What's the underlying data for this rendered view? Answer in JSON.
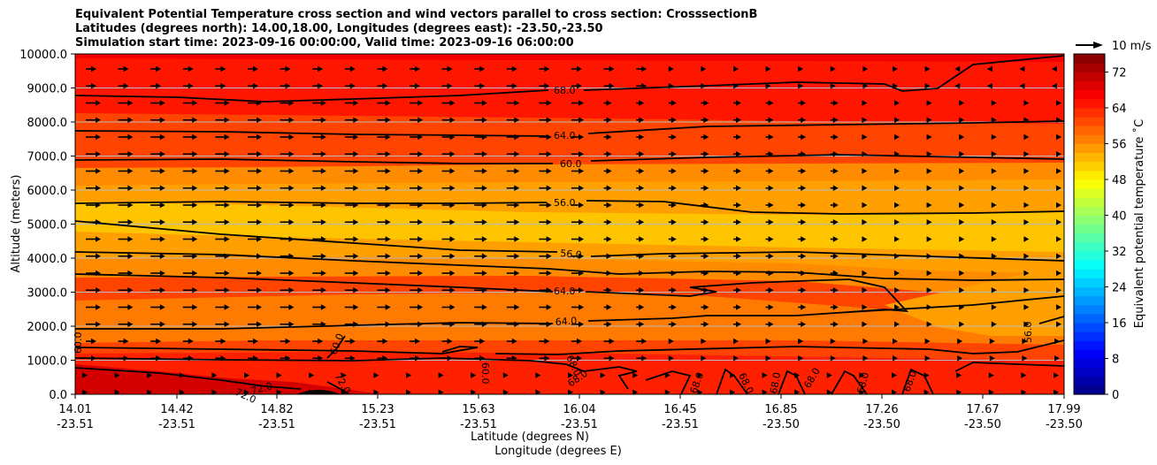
{
  "chart_data": {
    "type": "contour",
    "title_lines": [
      "Equivalent Potential Temperature cross section and wind vectors parallel to cross section: CrosssectionB",
      "Latitudes (degrees north): 14.00,18.00, Longitudes (degrees east): -23.50,-23.50",
      "Simulation start time: 2023-09-16 00:00:00, Valid time: 2023-09-16 06:00:00"
    ],
    "xlabel": "Latitude (degrees N)",
    "xlabel2": "Longitude (degrees E)",
    "ylabel": "Altitude (meters)",
    "x_ticks": [
      {
        "lat": "14.01",
        "lon": "-23.51"
      },
      {
        "lat": "14.42",
        "lon": "-23.51"
      },
      {
        "lat": "14.82",
        "lon": "-23.51"
      },
      {
        "lat": "15.23",
        "lon": "-23.51"
      },
      {
        "lat": "15.63",
        "lon": "-23.51"
      },
      {
        "lat": "16.04",
        "lon": "-23.51"
      },
      {
        "lat": "16.45",
        "lon": "-23.51"
      },
      {
        "lat": "16.85",
        "lon": "-23.50"
      },
      {
        "lat": "17.26",
        "lon": "-23.50"
      },
      {
        "lat": "17.67",
        "lon": "-23.50"
      },
      {
        "lat": "17.99",
        "lon": "-23.50"
      }
    ],
    "y_ticks": [
      "0.0",
      "1000.0",
      "2000.0",
      "3000.0",
      "4000.0",
      "5000.0",
      "6000.0",
      "7000.0",
      "8000.0",
      "9000.0",
      "10000.0"
    ],
    "ylim": [
      0,
      10000
    ],
    "grid": "horizontal",
    "colorbar": {
      "label": "Equivalent potential temperature ˚C",
      "ticks": [
        "0",
        "8",
        "16",
        "24",
        "32",
        "40",
        "48",
        "56",
        "64",
        "72"
      ],
      "range": [
        0,
        76
      ],
      "step": 2
    },
    "quiver_key": "10 m/s",
    "contour_labels": [
      "68.0",
      "64.0",
      "60.0",
      "56.0",
      "56.0",
      "64.0",
      "64.0",
      "60.0",
      "60.0",
      "60.0",
      "68.0",
      "68.0",
      "68.0",
      "68.0",
      "68.0",
      "68.0",
      "68.0",
      "68.0",
      "72.0",
      "72.0",
      "72.0",
      "56.0"
    ],
    "contour_levels": [
      56,
      60,
      64,
      68,
      72
    ],
    "temperature_profile_by_altitude": [
      {
        "altitude": 500,
        "value": 71
      },
      {
        "altitude": 1500,
        "value": 67
      },
      {
        "altitude": 2500,
        "value": 63
      },
      {
        "altitude": 3500,
        "value": 58
      },
      {
        "altitude": 4500,
        "value": 54
      },
      {
        "altitude": 5500,
        "value": 55
      },
      {
        "altitude": 6500,
        "value": 58
      },
      {
        "altitude": 7500,
        "value": 63
      },
      {
        "altitude": 8500,
        "value": 66
      },
      {
        "altitude": 9500,
        "value": 68
      }
    ]
  }
}
